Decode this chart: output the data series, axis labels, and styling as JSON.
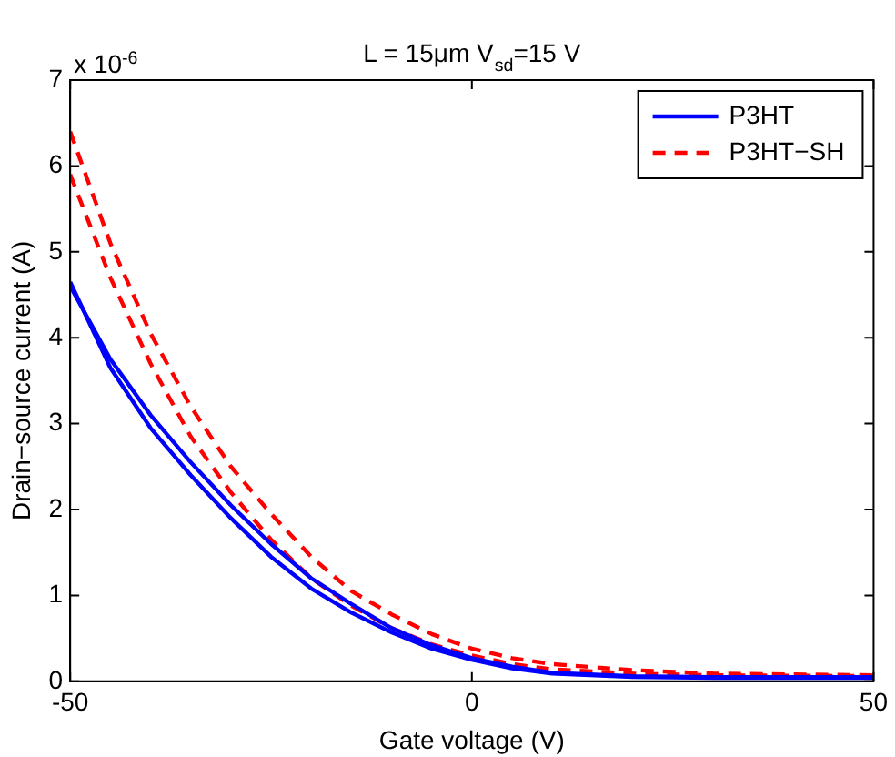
{
  "chart_data": {
    "type": "line",
    "title": "L = 15μm V$_{sd}$=15 V",
    "xlabel": "Gate voltage (V)",
    "ylabel": "Drain−source current (A)",
    "annotations": [
      "x 10$^{-6}$"
    ],
    "x": [
      -50,
      -45,
      -40,
      -35,
      -30,
      -25,
      -20,
      -15,
      -10,
      -5,
      0,
      5,
      10,
      20,
      30,
      50
    ],
    "series": [
      {
        "name": "P3HT",
        "color": "#0000ff",
        "line_style": "solid",
        "values": [
          4.65,
          3.65,
          2.95,
          2.4,
          1.9,
          1.45,
          1.08,
          0.8,
          0.57,
          0.38,
          0.25,
          0.15,
          0.09,
          0.05,
          0.04,
          0.04
        ]
      },
      {
        "color": "#0000ff",
        "line_style": "solid",
        "values": [
          4.6,
          3.75,
          3.1,
          2.55,
          2.05,
          1.6,
          1.2,
          0.9,
          0.62,
          0.42,
          0.27,
          0.17,
          0.1,
          0.06,
          0.05,
          0.05
        ]
      },
      {
        "name": "P3HT−SH",
        "color": "#ff0000",
        "line_style": "dashed",
        "values": [
          5.9,
          4.7,
          3.7,
          2.85,
          2.2,
          1.65,
          1.2,
          0.88,
          0.62,
          0.43,
          0.3,
          0.2,
          0.14,
          0.09,
          0.07,
          0.06
        ]
      },
      {
        "color": "#ff0000",
        "line_style": "dashed",
        "values": [
          6.4,
          5.1,
          4.05,
          3.2,
          2.5,
          1.95,
          1.45,
          1.05,
          0.78,
          0.55,
          0.38,
          0.27,
          0.2,
          0.13,
          0.09,
          0.07
        ]
      }
    ],
    "xlim": [
      -50,
      50
    ],
    "xticks": [
      -50,
      0,
      50
    ],
    "ylim": [
      0,
      7
    ],
    "yticks": [
      0,
      1,
      2,
      3,
      4,
      5,
      6,
      7
    ],
    "grid": false,
    "legend": "top right",
    "marker": "none"
  }
}
